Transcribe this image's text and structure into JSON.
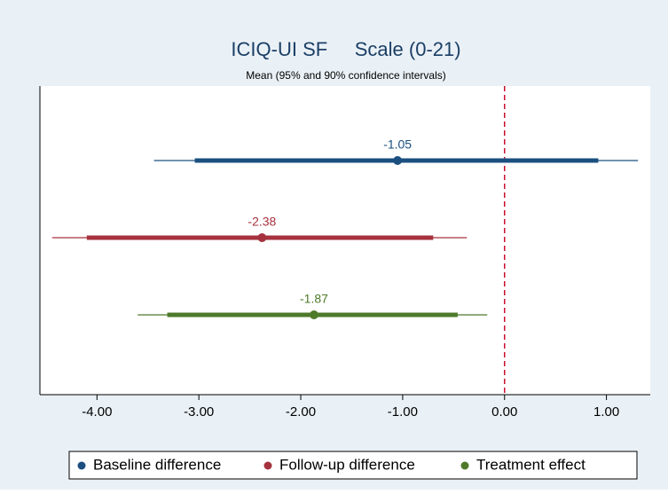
{
  "chart_data": {
    "type": "interval",
    "title": "ICIQ-UI SF     Scale (0-21)",
    "subtitle": "Mean (95% and 90% confidence intervals)",
    "xlim": [
      -4.56,
      1.43
    ],
    "xticks": [
      {
        "value": -4,
        "label": "-4.00"
      },
      {
        "value": -3,
        "label": "-3.00"
      },
      {
        "value": -2,
        "label": "-2.00"
      },
      {
        "value": -1,
        "label": "-1.00"
      },
      {
        "value": 0,
        "label": "0.00"
      },
      {
        "value": 1,
        "label": "1.00"
      }
    ],
    "reference_line": 0,
    "reference_color": "#c8102e",
    "series": [
      {
        "name": "Baseline difference",
        "color": "#1b4f80",
        "value": -1.05,
        "ci90": [
          -3.04,
          0.92
        ],
        "ci95": [
          -3.44,
          1.31
        ]
      },
      {
        "name": "Follow-up difference",
        "color": "#a6323f",
        "value": -2.38,
        "ci90": [
          -4.1,
          -0.7
        ],
        "ci95": [
          -4.44,
          -0.37
        ]
      },
      {
        "name": "Treatment effect",
        "color": "#4e7a2a",
        "value": -1.87,
        "ci90": [
          -3.31,
          -0.46
        ],
        "ci95": [
          -3.6,
          -0.17
        ]
      }
    ]
  }
}
